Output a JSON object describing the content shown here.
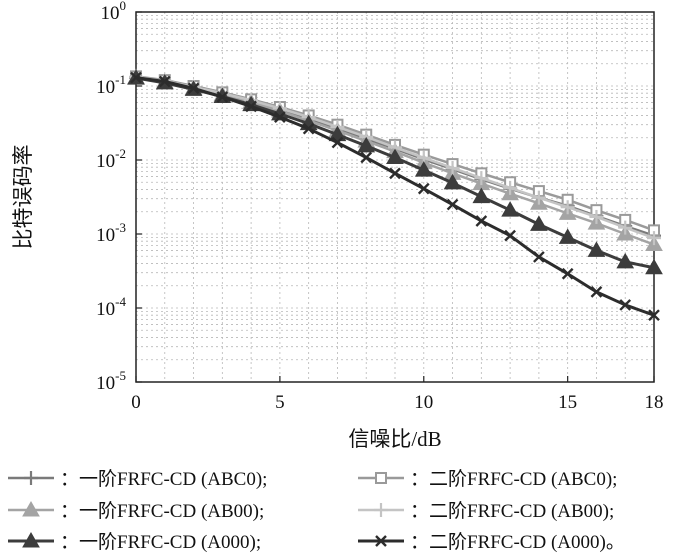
{
  "chart_data": {
    "type": "line",
    "xlabel": "信噪比/dB",
    "ylabel": "比特误码率",
    "xlim": [
      0,
      18
    ],
    "ylim": [
      1e-05,
      1
    ],
    "y_scale": "log",
    "grid": true,
    "x_ticks": [
      0,
      5,
      10,
      15,
      18
    ],
    "x_tick_labels": [
      "0",
      "5",
      "10",
      "15",
      "18"
    ],
    "y_ticks": [
      1,
      0.1,
      0.01,
      0.001,
      0.0001,
      1e-05
    ],
    "y_tick_labels": [
      {
        "base": "10",
        "exp": "0"
      },
      {
        "base": "10",
        "exp": "-1"
      },
      {
        "base": "10",
        "exp": "-2"
      },
      {
        "base": "10",
        "exp": "-3"
      },
      {
        "base": "10",
        "exp": "-4"
      },
      {
        "base": "10",
        "exp": "-5"
      }
    ],
    "x": [
      0,
      1,
      2,
      3,
      4,
      5,
      6,
      7,
      8,
      9,
      10,
      11,
      12,
      13,
      14,
      15,
      16,
      17,
      18
    ],
    "legend_position": "bottom, two columns",
    "series": [
      {
        "name": "：一阶FRFC-CD (ABC0);",
        "color": "#7a7a7a",
        "marker": "plus",
        "width": 2.5,
        "values": [
          0.13,
          0.115,
          0.095,
          0.078,
          0.062,
          0.048,
          0.036,
          0.027,
          0.0195,
          0.0142,
          0.0102,
          0.0075,
          0.0055,
          0.0041,
          0.0031,
          0.0024,
          0.00175,
          0.00128,
          0.00095
        ]
      },
      {
        "name": "：二阶FRFC-CD (ABC0);",
        "color": "#9a9a9a",
        "marker": "square",
        "width": 2.5,
        "values": [
          0.135,
          0.12,
          0.1,
          0.082,
          0.066,
          0.052,
          0.04,
          0.03,
          0.022,
          0.016,
          0.0118,
          0.0088,
          0.0066,
          0.005,
          0.0038,
          0.0029,
          0.0021,
          0.00155,
          0.00112
        ]
      },
      {
        "name": "：一阶FRFC-CD (AB00);",
        "color": "#a4a4a4",
        "marker": "triangle",
        "width": 2.5,
        "values": [
          0.13,
          0.113,
          0.093,
          0.076,
          0.06,
          0.046,
          0.034,
          0.025,
          0.018,
          0.013,
          0.0092,
          0.0066,
          0.0048,
          0.0035,
          0.0026,
          0.0019,
          0.0014,
          0.001,
          0.00072
        ]
      },
      {
        "name": "：二阶FRFC-CD (AB00);",
        "color": "#c4c4c4",
        "marker": "plus",
        "width": 2.5,
        "values": [
          0.133,
          0.117,
          0.097,
          0.08,
          0.064,
          0.05,
          0.038,
          0.028,
          0.0205,
          0.0148,
          0.0107,
          0.0078,
          0.0057,
          0.0042,
          0.0031,
          0.0023,
          0.0017,
          0.00122,
          0.00088
        ]
      },
      {
        "name": "：一阶FRFC-CD (A000);",
        "color": "#3c3c3c",
        "marker": "triangle",
        "width": 3,
        "values": [
          0.128,
          0.11,
          0.09,
          0.072,
          0.056,
          0.042,
          0.031,
          0.022,
          0.0155,
          0.0108,
          0.0073,
          0.0049,
          0.0032,
          0.0021,
          0.00135,
          0.0009,
          0.0006,
          0.00042,
          0.00035
        ]
      },
      {
        "name": "：二阶FRFC-CD (A000)。",
        "color": "#2c2c2c",
        "marker": "x",
        "width": 3,
        "values": [
          0.13,
          0.115,
          0.093,
          0.071,
          0.053,
          0.038,
          0.0265,
          0.0172,
          0.0108,
          0.0066,
          0.0041,
          0.0025,
          0.0015,
          0.00095,
          0.00049,
          0.00029,
          0.000165,
          0.00011,
          8e-05
        ]
      }
    ]
  }
}
